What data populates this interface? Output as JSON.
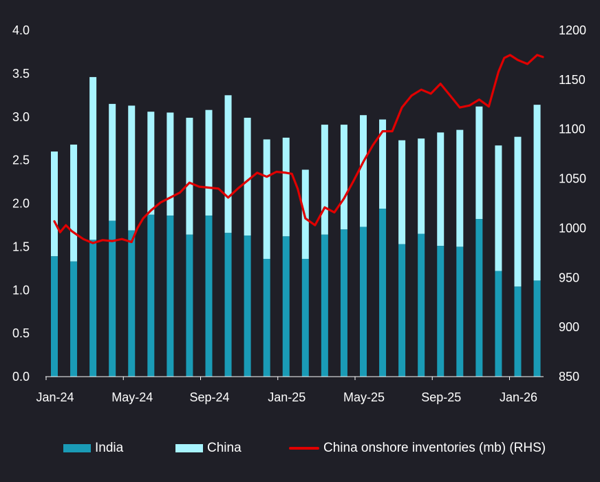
{
  "chart_data": {
    "type": "bar",
    "title": "",
    "stacked": true,
    "categories": [
      "Jan-24",
      "Feb-24",
      "Mar-24",
      "Apr-24",
      "May-24",
      "Jun-24",
      "Jul-24",
      "Aug-24",
      "Sep-24",
      "Oct-24",
      "Nov-24",
      "Dec-24",
      "Jan-25",
      "Feb-25",
      "Mar-25",
      "Apr-25",
      "May-25",
      "Jun-25",
      "Jul-25",
      "Aug-25",
      "Sep-25",
      "Oct-25",
      "Nov-25",
      "Dec-25",
      "Jan-26",
      "Feb-26"
    ],
    "x_tick_labels": [
      "Jan-24",
      "May-24",
      "Sep-24",
      "Jan-25",
      "May-25",
      "Sep-25",
      "Jan-26"
    ],
    "left_axis": {
      "ylim": [
        0,
        4.0
      ],
      "ticks": [
        "0.0",
        "0.5",
        "1.0",
        "1.5",
        "2.0",
        "2.5",
        "3.0",
        "3.5",
        "4.0"
      ]
    },
    "right_axis": {
      "ylim": [
        850,
        1200
      ],
      "ticks": [
        "850",
        "900",
        "950",
        "1000",
        "1050",
        "1100",
        "1150",
        "1200"
      ]
    },
    "series": [
      {
        "name": "India",
        "color": "#1a9bb6",
        "axis": "left",
        "values": [
          1.39,
          1.33,
          1.58,
          1.8,
          1.69,
          1.87,
          1.86,
          1.64,
          1.86,
          1.66,
          1.63,
          1.36,
          1.62,
          1.36,
          1.64,
          1.7,
          1.73,
          1.94,
          1.53,
          1.65,
          1.51,
          1.5,
          1.82,
          1.22,
          1.04,
          1.11
        ]
      },
      {
        "name": "China",
        "color": "#a8f4ff",
        "axis": "left",
        "values": [
          1.21,
          1.35,
          1.88,
          1.35,
          1.44,
          1.19,
          1.19,
          1.35,
          1.22,
          1.59,
          1.36,
          1.38,
          1.14,
          1.03,
          1.27,
          1.21,
          1.29,
          1.03,
          1.2,
          1.1,
          1.31,
          1.35,
          1.3,
          1.45,
          1.73,
          2.03
        ]
      },
      {
        "name": "China onshore inventories (mb) (RHS)",
        "color": "#e00000",
        "axis": "right",
        "type": "line",
        "x": [
          0,
          0.3,
          0.6,
          0.9,
          1.2,
          1.5,
          2.0,
          2.5,
          3.0,
          3.5,
          4.0,
          4.3,
          4.6,
          5.0,
          5.5,
          6.0,
          6.5,
          7.0,
          7.5,
          8.0,
          8.5,
          9.0,
          9.5,
          10.0,
          10.5,
          11.0,
          11.5,
          12.0,
          12.3,
          12.6,
          13.0,
          13.5,
          14.0,
          14.5,
          15.0,
          15.5,
          16.0,
          16.5,
          17.0,
          17.5,
          18.0,
          18.5,
          19.0,
          19.5,
          20.0,
          20.5,
          21.0,
          21.5,
          22.0,
          22.5,
          23.0,
          23.3,
          23.6,
          24.0,
          24.5,
          25.0,
          25.3
        ],
        "values": [
          1007,
          996,
          1003,
          997,
          993,
          989,
          985,
          988,
          987,
          989,
          986,
          1000,
          1010,
          1018,
          1026,
          1031,
          1036,
          1046,
          1042,
          1041,
          1040,
          1031,
          1040,
          1048,
          1056,
          1052,
          1057,
          1056,
          1055,
          1040,
          1010,
          1003,
          1021,
          1016,
          1030,
          1048,
          1067,
          1084,
          1098,
          1098,
          1122,
          1134,
          1140,
          1136,
          1146,
          1134,
          1122,
          1124,
          1130,
          1123,
          1158,
          1172,
          1175,
          1170,
          1166,
          1175,
          1173
        ]
      }
    ]
  },
  "legend": {
    "india_label": "India",
    "china_label": "China",
    "inventories_label": "China onshore inventories (mb) (RHS)"
  }
}
